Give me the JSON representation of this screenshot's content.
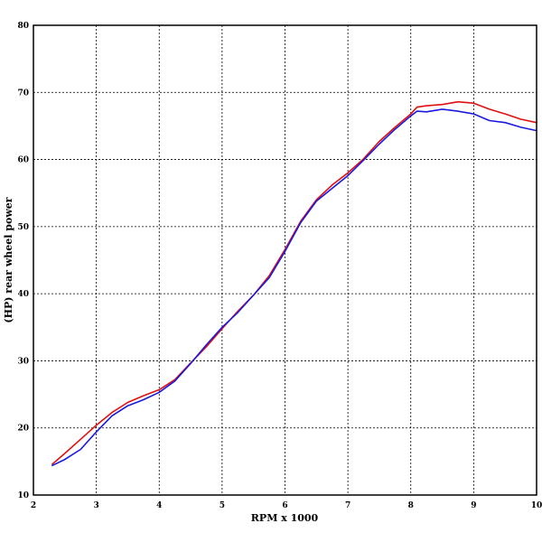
{
  "chart_data": {
    "type": "line",
    "title": "",
    "xlabel": "RPM x 1000",
    "ylabel": "(HP) rear wheel power",
    "xlim": [
      2,
      10
    ],
    "ylim": [
      10,
      80
    ],
    "xticks": [
      "2",
      "3",
      "4",
      "5",
      "6",
      "7",
      "8",
      "9",
      "10"
    ],
    "yticks": [
      "10",
      "20",
      "30",
      "40",
      "50",
      "60",
      "70",
      "80"
    ],
    "grid": true,
    "legend": "none",
    "series": [
      {
        "color": "#e01010",
        "x": [
          2.3,
          2.5,
          2.75,
          3.0,
          3.25,
          3.5,
          3.75,
          4.0,
          4.25,
          4.5,
          4.75,
          5.0,
          5.25,
          5.5,
          5.75,
          6.0,
          6.25,
          6.5,
          6.75,
          7.0,
          7.25,
          7.5,
          7.75,
          8.0,
          8.1,
          8.25,
          8.5,
          8.75,
          9.0,
          9.25,
          9.5,
          9.75,
          10.0
        ],
        "values": [
          14.6,
          16.2,
          18.3,
          20.4,
          22.3,
          23.8,
          24.8,
          25.7,
          27.2,
          29.7,
          32.1,
          34.8,
          37.4,
          39.8,
          42.7,
          46.6,
          50.8,
          54.0,
          56.2,
          58.0,
          60.1,
          62.7,
          64.8,
          66.8,
          67.8,
          68.0,
          68.2,
          68.6,
          68.4,
          67.5,
          66.8,
          66.0,
          65.5
        ]
      },
      {
        "color": "#1a1adf",
        "x": [
          2.3,
          2.5,
          2.75,
          3.0,
          3.25,
          3.5,
          3.75,
          4.0,
          4.25,
          4.5,
          4.75,
          5.0,
          5.25,
          5.5,
          5.75,
          6.0,
          6.25,
          6.5,
          6.75,
          7.0,
          7.25,
          7.5,
          7.75,
          8.0,
          8.1,
          8.25,
          8.5,
          8.75,
          9.0,
          9.25,
          9.5,
          9.75,
          10.0
        ],
        "values": [
          14.4,
          15.3,
          16.8,
          19.4,
          21.8,
          23.3,
          24.2,
          25.3,
          27.0,
          29.6,
          32.4,
          35.0,
          37.2,
          39.8,
          42.4,
          46.3,
          50.6,
          53.8,
          55.7,
          57.6,
          59.9,
          62.3,
          64.5,
          66.5,
          67.2,
          67.1,
          67.5,
          67.2,
          66.8,
          65.8,
          65.5,
          64.8,
          64.3
        ]
      }
    ]
  }
}
